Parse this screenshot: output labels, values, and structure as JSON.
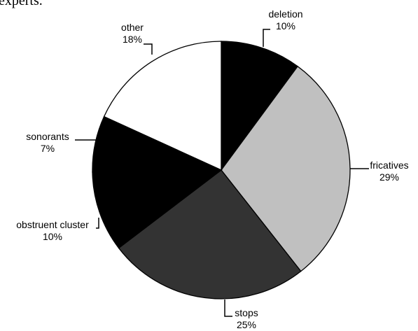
{
  "page": {
    "heading_fragment": "experts."
  },
  "chart_data": {
    "type": "pie",
    "title": "",
    "start": "12 o'clock",
    "direction": "clockwise",
    "legend": "none",
    "slices": [
      {
        "label": "deletion",
        "percent_label": "10%",
        "value": 10,
        "color": "#000000"
      },
      {
        "label": "fricatives",
        "percent_label": "29%",
        "value": 29,
        "color": "#c0c0c0"
      },
      {
        "label": "stops",
        "percent_label": "25%",
        "value": 25,
        "color": "#333333"
      },
      {
        "label": "obstruent cluster",
        "percent_label": "10%",
        "value": 10,
        "color": "#000000"
      },
      {
        "label": "sonorants",
        "percent_label": "7%",
        "value": 7,
        "color": "#000000"
      },
      {
        "label": "other",
        "percent_label": "18%",
        "value": 18,
        "color": "#ffffff"
      }
    ]
  }
}
